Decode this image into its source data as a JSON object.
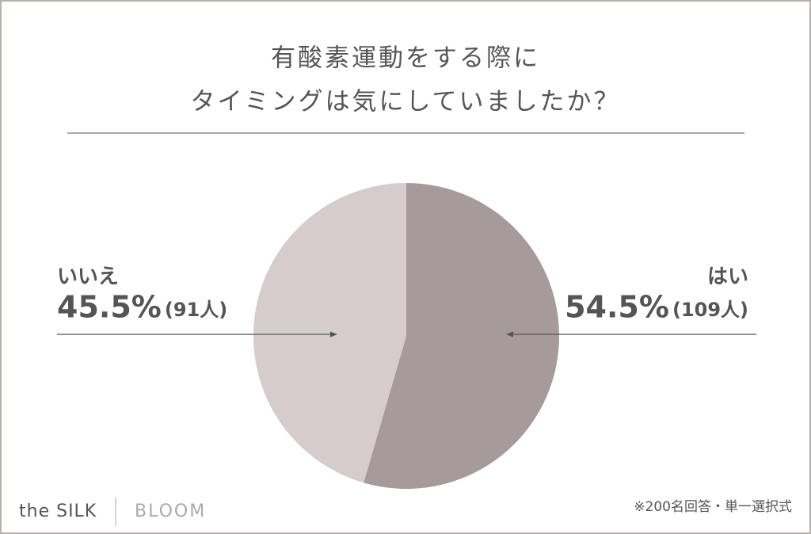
{
  "chart_data": {
    "type": "pie",
    "title": [
      "有酸素運動をする際に",
      "タイミングは気にしていましたか？"
    ],
    "categories": [
      "はい",
      "いいえ"
    ],
    "values": [
      54.5,
      45.5
    ],
    "value_labels": [
      "54.5%",
      "45.5%"
    ],
    "counts": [
      109,
      91
    ],
    "count_labels": [
      "(109人)",
      "(91人)"
    ],
    "colors": [
      "#a69a9a",
      "#d5cdcd"
    ],
    "footnote": "※200名回答・単一選択式"
  },
  "brand": {
    "name": "the SILK",
    "sub": "BLOOM"
  }
}
